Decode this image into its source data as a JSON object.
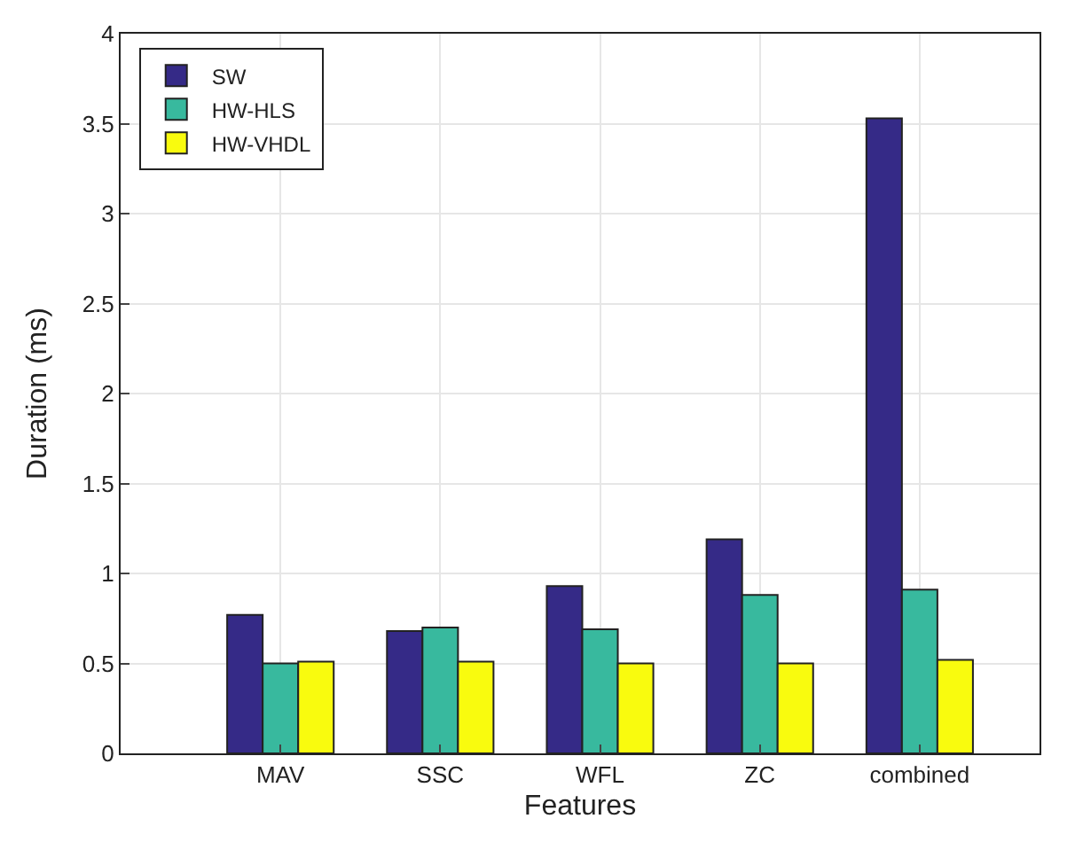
{
  "chart_data": {
    "type": "bar",
    "xlabel": "Features",
    "ylabel": "Duration (ms)",
    "categories": [
      "MAV",
      "SSC",
      "WFL",
      "ZC",
      "combined"
    ],
    "series": [
      {
        "name": "SW",
        "color": "#352a87",
        "values": [
          0.77,
          0.68,
          0.93,
          1.19,
          3.53
        ]
      },
      {
        "name": "HW-HLS",
        "color": "#38b99e",
        "values": [
          0.5,
          0.7,
          0.69,
          0.88,
          0.91
        ]
      },
      {
        "name": "HW-VHDL",
        "color": "#f9fb0e",
        "values": [
          0.51,
          0.51,
          0.5,
          0.5,
          0.52
        ]
      }
    ],
    "ylim": [
      0,
      4
    ],
    "yticks": [
      0,
      0.5,
      1,
      1.5,
      2,
      2.5,
      3,
      3.5,
      4
    ],
    "grid": true,
    "legend": "top left"
  }
}
